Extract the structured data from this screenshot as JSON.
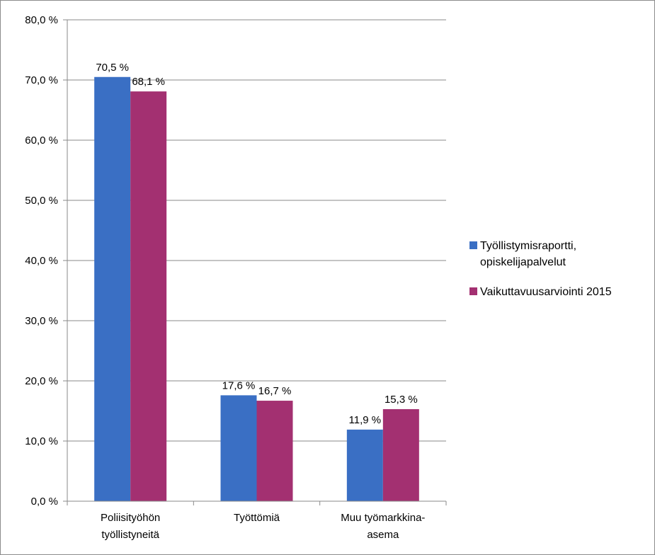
{
  "chart_data": {
    "type": "bar",
    "categories": [
      [
        "Poliisityöhön",
        "työllistyneitä"
      ],
      [
        "Työttömiä"
      ],
      [
        "Muu työmarkkina-",
        "asema"
      ]
    ],
    "series": [
      {
        "name": [
          "Työllistymisraportti,",
          "opiskelijapalvelut"
        ],
        "values": [
          70.5,
          17.6,
          11.9
        ],
        "labels": [
          "70,5 %",
          "17,6 %",
          "11,9 %"
        ],
        "color": "#3a6fc4"
      },
      {
        "name": [
          "Vaikuttavuusarviointi 2015"
        ],
        "values": [
          68.1,
          16.7,
          15.3
        ],
        "labels": [
          "68,1 %",
          "16,7 %",
          "15,3 %"
        ],
        "color": "#a33071"
      }
    ],
    "yticks": [
      "0,0 %",
      "10,0 %",
      "20,0 %",
      "30,0 %",
      "40,0 %",
      "50,0 %",
      "60,0 %",
      "70,0 %",
      "80,0 %"
    ],
    "ylim": [
      0,
      80
    ],
    "grid": true,
    "legend": "right",
    "title": "",
    "xlabel": "",
    "ylabel": ""
  }
}
